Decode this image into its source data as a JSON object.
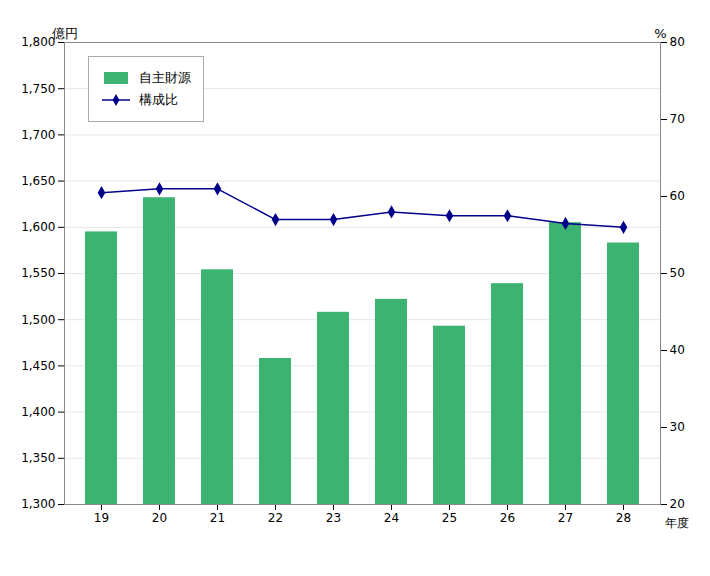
{
  "chart_data": {
    "type": "bar",
    "categories": [
      "19",
      "20",
      "21",
      "22",
      "23",
      "24",
      "25",
      "26",
      "27",
      "28"
    ],
    "xlabel": "年度",
    "ylabel": "億円",
    "y2label": "%",
    "series": [
      {
        "name": "自主財源",
        "type": "bar",
        "color": "#3CB371",
        "values": [
          1595,
          1632,
          1554,
          1458,
          1508,
          1522,
          1493,
          1539,
          1605,
          1583
        ]
      },
      {
        "name": "構成比",
        "type": "line",
        "color": "#00008B",
        "marker": "diamond",
        "axis": "y2",
        "values": [
          60.5,
          61.0,
          61.0,
          57.0,
          57.0,
          58.0,
          57.5,
          57.5,
          56.5,
          56.0
        ]
      }
    ],
    "ylim": [
      1300,
      1800
    ],
    "yticks": [
      {
        "value": 1300,
        "label": "1,300"
      },
      {
        "value": 1350,
        "label": "1,350"
      },
      {
        "value": 1400,
        "label": "1,400"
      },
      {
        "value": 1450,
        "label": "1,450"
      },
      {
        "value": 1500,
        "label": "1,500"
      },
      {
        "value": 1550,
        "label": "1,550"
      },
      {
        "value": 1600,
        "label": "1,600"
      },
      {
        "value": 1650,
        "label": "1,650"
      },
      {
        "value": 1700,
        "label": "1,700"
      },
      {
        "value": 1750,
        "label": "1,750"
      },
      {
        "value": 1800,
        "label": "1,800"
      }
    ],
    "y2lim": [
      20,
      80
    ],
    "y2ticks": [
      20,
      30,
      40,
      50,
      60,
      70,
      80
    ],
    "grid": true,
    "legend": "upper left"
  }
}
